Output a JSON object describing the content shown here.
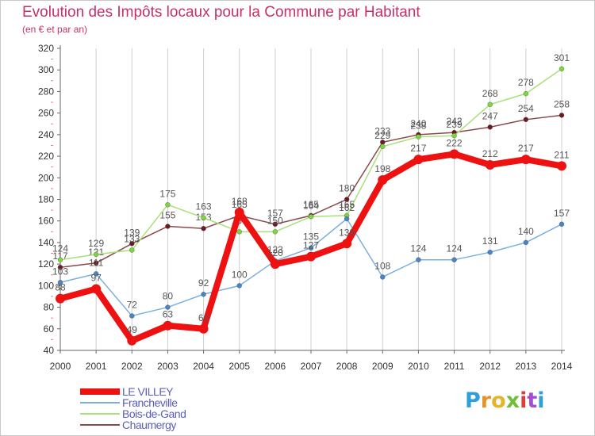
{
  "title": "Evolution des Impôts locaux pour la Commune par Habitant",
  "subtitle": "(en € et par an)",
  "brand": {
    "text": "Proxiti",
    "colors": [
      "#2e9fd9",
      "#e8932a",
      "#e6b32a",
      "#6fbf3a",
      "#e23b3b",
      "#a24fd6",
      "#2e9fd9"
    ]
  },
  "chart_data": {
    "type": "line",
    "categories": [
      "2000",
      "2001",
      "2002",
      "2003",
      "2004",
      "2005",
      "2006",
      "2007",
      "2008",
      "2009",
      "2010",
      "2011",
      "2012",
      "2013",
      "2014"
    ],
    "ylim": [
      40,
      320
    ],
    "yticks": [
      40,
      60,
      80,
      100,
      120,
      140,
      160,
      180,
      200,
      220,
      240,
      260,
      280,
      300,
      320
    ],
    "grid": "vertical",
    "legend": "bottom-left",
    "series": [
      {
        "name": "Chaumergy",
        "color": "#6b1a22",
        "line": "#8a4a4a",
        "width": 1.5,
        "values": [
          117,
          121,
          139,
          155,
          153,
          165,
          157,
          165,
          180,
          233,
          240,
          242,
          247,
          254,
          258
        ],
        "labels": [
          "117",
          "121",
          "139",
          "155",
          "153",
          "165",
          "157",
          "165",
          "180",
          "233",
          "240",
          "242",
          "247",
          "254",
          "258"
        ]
      },
      {
        "name": "Bois-de-Gand",
        "color": "#7dd63c",
        "line": "#a8e07a",
        "width": 1.5,
        "values": [
          124,
          129,
          133,
          175,
          163,
          150,
          150,
          164,
          165,
          229,
          238,
          239,
          268,
          278,
          301
        ],
        "labels": [
          "124",
          "129",
          "133",
          "175",
          "163",
          "150",
          "150",
          "164",
          "165",
          "229",
          "238",
          "239",
          "268",
          "278",
          "301"
        ]
      },
      {
        "name": "Francheville",
        "color": "#4a84c4",
        "line": "#7ab0e0",
        "width": 1.5,
        "values": [
          103,
          111,
          72,
          80,
          92,
          100,
          123,
          135,
          162,
          108,
          124,
          124,
          131,
          140,
          157
        ],
        "labels": [
          "103",
          "111",
          "72",
          "80",
          "92",
          "100",
          "123",
          "135",
          "162",
          "108",
          "124",
          "124",
          "131",
          "140",
          "157"
        ]
      },
      {
        "name": "LE VILLEY",
        "color": "#ee1111",
        "line": "#ee1111",
        "width": 8,
        "values": [
          88,
          97,
          49,
          63,
          60,
          168,
          120,
          127,
          139,
          198,
          217,
          222,
          212,
          217,
          211
        ],
        "labels": [
          "88",
          "97",
          "49",
          "63",
          "60",
          "168",
          "120",
          "127",
          "139",
          "198",
          "217",
          "222",
          "212",
          "217",
          "211"
        ]
      }
    ],
    "legend_order": [
      "LE VILLEY",
      "Francheville",
      "Bois-de-Gand",
      "Chaumergy"
    ]
  }
}
